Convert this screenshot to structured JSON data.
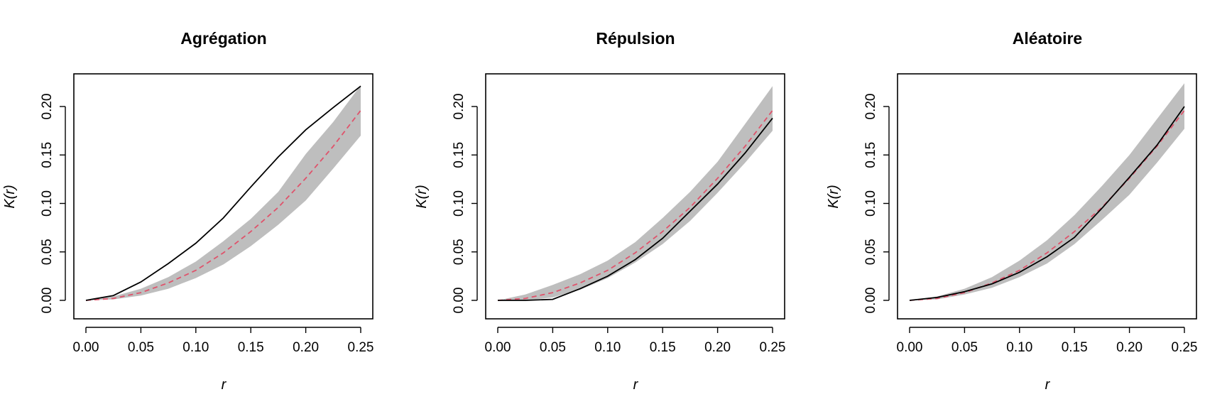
{
  "chart_data": [
    {
      "type": "line",
      "title": "Agrégation",
      "xlabel": "r",
      "ylabel": "K(r)",
      "xlim": [
        0,
        0.25
      ],
      "ylim": [
        -0.01,
        0.225
      ],
      "xticks": [
        "0.00",
        "0.05",
        "0.10",
        "0.15",
        "0.20",
        "0.25"
      ],
      "yticks": [
        "0.00",
        "0.05",
        "0.10",
        "0.15",
        "0.20"
      ],
      "x": [
        0,
        0.025,
        0.05,
        0.075,
        0.1,
        0.125,
        0.15,
        0.175,
        0.2,
        0.225,
        0.25
      ],
      "series": [
        {
          "role": "observed",
          "color": "#000000",
          "values": [
            0,
            0.005,
            0.019,
            0.038,
            0.059,
            0.085,
            0.117,
            0.148,
            0.176,
            0.199,
            0.221
          ]
        },
        {
          "role": "theoretical",
          "color": "#DF536B",
          "values": [
            0,
            0.002,
            0.008,
            0.018,
            0.031,
            0.049,
            0.071,
            0.096,
            0.126,
            0.159,
            0.196
          ]
        },
        {
          "role": "envelope_upper",
          "color": "#BEBEBE",
          "values": [
            0,
            0.004,
            0.012,
            0.024,
            0.04,
            0.061,
            0.084,
            0.112,
            0.151,
            0.184,
            0.222
          ]
        },
        {
          "role": "envelope_lower",
          "color": "#BEBEBE",
          "values": [
            0,
            0.001,
            0.005,
            0.012,
            0.023,
            0.037,
            0.056,
            0.078,
            0.103,
            0.136,
            0.17
          ]
        }
      ]
    },
    {
      "type": "line",
      "title": "Répulsion",
      "xlabel": "r",
      "ylabel": "K(r)",
      "xlim": [
        0,
        0.25
      ],
      "ylim": [
        -0.01,
        0.225
      ],
      "xticks": [
        "0.00",
        "0.05",
        "0.10",
        "0.15",
        "0.20",
        "0.25"
      ],
      "yticks": [
        "0.00",
        "0.05",
        "0.10",
        "0.15",
        "0.20"
      ],
      "x": [
        0,
        0.025,
        0.05,
        0.075,
        0.1,
        0.125,
        0.15,
        0.175,
        0.2,
        0.225,
        0.25
      ],
      "series": [
        {
          "role": "observed",
          "color": "#000000",
          "values": [
            0,
            0,
            0.001,
            0.012,
            0.025,
            0.042,
            0.064,
            0.092,
            0.12,
            0.152,
            0.188
          ]
        },
        {
          "role": "theoretical",
          "color": "#DF536B",
          "values": [
            0,
            0.002,
            0.008,
            0.018,
            0.031,
            0.049,
            0.071,
            0.096,
            0.126,
            0.159,
            0.196
          ]
        },
        {
          "role": "envelope_upper",
          "color": "#BEBEBE",
          "values": [
            0,
            0.006,
            0.016,
            0.027,
            0.041,
            0.06,
            0.085,
            0.112,
            0.143,
            0.182,
            0.221
          ]
        },
        {
          "role": "envelope_lower",
          "color": "#BEBEBE",
          "values": [
            0,
            0,
            0.003,
            0.011,
            0.023,
            0.039,
            0.058,
            0.082,
            0.111,
            0.142,
            0.175
          ]
        }
      ]
    },
    {
      "type": "line",
      "title": "Aléatoire",
      "xlabel": "r",
      "ylabel": "K(r)",
      "xlim": [
        0,
        0.25
      ],
      "ylim": [
        -0.01,
        0.225
      ],
      "xticks": [
        "0.00",
        "0.05",
        "0.10",
        "0.15",
        "0.20",
        "0.25"
      ],
      "yticks": [
        "0.00",
        "0.05",
        "0.10",
        "0.15",
        "0.20"
      ],
      "x": [
        0,
        0.025,
        0.05,
        0.075,
        0.1,
        0.125,
        0.15,
        0.175,
        0.2,
        0.225,
        0.25
      ],
      "series": [
        {
          "role": "observed",
          "color": "#000000",
          "values": [
            0,
            0.003,
            0.009,
            0.017,
            0.029,
            0.045,
            0.065,
            0.095,
            0.127,
            0.16,
            0.2
          ]
        },
        {
          "role": "theoretical",
          "color": "#DF536B",
          "values": [
            0,
            0.002,
            0.008,
            0.018,
            0.031,
            0.049,
            0.071,
            0.096,
            0.126,
            0.159,
            0.196
          ]
        },
        {
          "role": "envelope_upper",
          "color": "#BEBEBE",
          "values": [
            0,
            0.004,
            0.012,
            0.024,
            0.041,
            0.062,
            0.088,
            0.118,
            0.15,
            0.187,
            0.224
          ]
        },
        {
          "role": "envelope_lower",
          "color": "#BEBEBE",
          "values": [
            0,
            0.001,
            0.006,
            0.013,
            0.024,
            0.038,
            0.058,
            0.083,
            0.109,
            0.142,
            0.177
          ]
        }
      ]
    }
  ]
}
